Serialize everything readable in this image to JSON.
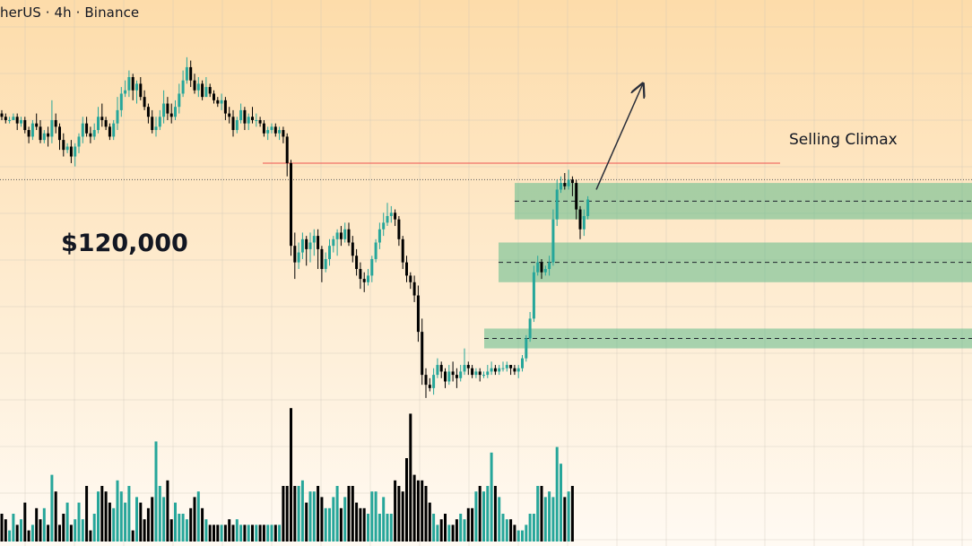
{
  "header": {
    "symbol_text": "herUS",
    "interval": "4h",
    "exchange": "Binance",
    "separator": "·"
  },
  "overlay_price": "$120,000",
  "annotations": {
    "selling_climax": "Selling Climax"
  },
  "colors": {
    "bg_top": "#fddcaa",
    "bg_bottom": "#fffaf3",
    "up": "#26a69a",
    "down": "#000000",
    "zone_fill": "#5fb98a",
    "resistance_line": "#ef5350",
    "text": "#131722"
  },
  "chart_data": {
    "type": "candlestick",
    "symbol": "herUS",
    "interval": "4h",
    "exchange": "Binance",
    "price_scale": {
      "top_value": 100,
      "bottom_value": 0,
      "note": "unlabeled price scale; values in arbitrary chart units"
    },
    "candles": [
      [
        89,
        88,
        90,
        87
      ],
      [
        88,
        87,
        89,
        86
      ],
      [
        87,
        87,
        88,
        86
      ],
      [
        87,
        88,
        89,
        87
      ],
      [
        88,
        86,
        89,
        84
      ],
      [
        86,
        87,
        88,
        85
      ],
      [
        87,
        84,
        88,
        83
      ],
      [
        84,
        82,
        85,
        80
      ],
      [
        82,
        86,
        87,
        81
      ],
      [
        86,
        85,
        89,
        84
      ],
      [
        85,
        81,
        87,
        80
      ],
      [
        81,
        83,
        84,
        80
      ],
      [
        83,
        82,
        85,
        79
      ],
      [
        82,
        87,
        93,
        80
      ],
      [
        87,
        85,
        89,
        83
      ],
      [
        85,
        81,
        86,
        78
      ],
      [
        81,
        78,
        83,
        76
      ],
      [
        78,
        79,
        80,
        77
      ],
      [
        79,
        76,
        81,
        74
      ],
      [
        76,
        79,
        80,
        73
      ],
      [
        79,
        82,
        83,
        77
      ],
      [
        82,
        86,
        88,
        80
      ],
      [
        86,
        83,
        88,
        82
      ],
      [
        83,
        82,
        85,
        80
      ],
      [
        82,
        84,
        86,
        81
      ],
      [
        84,
        88,
        91,
        83
      ],
      [
        88,
        87,
        92,
        85
      ],
      [
        87,
        85,
        88,
        84
      ],
      [
        85,
        82,
        86,
        81
      ],
      [
        82,
        86,
        87,
        81
      ],
      [
        86,
        90,
        94,
        84
      ],
      [
        90,
        95,
        97,
        88
      ],
      [
        95,
        96,
        99,
        94
      ],
      [
        96,
        100,
        102,
        94
      ],
      [
        100,
        96,
        101,
        93
      ],
      [
        96,
        98,
        99,
        92
      ],
      [
        98,
        94,
        100,
        93
      ],
      [
        94,
        91,
        96,
        90
      ],
      [
        91,
        88,
        92,
        86
      ],
      [
        88,
        84,
        90,
        83
      ],
      [
        84,
        85,
        88,
        82
      ],
      [
        85,
        88,
        90,
        84
      ],
      [
        88,
        92,
        96,
        86
      ],
      [
        92,
        89,
        94,
        87
      ],
      [
        89,
        88,
        92,
        86
      ],
      [
        88,
        91,
        93,
        87
      ],
      [
        91,
        95,
        98,
        89
      ],
      [
        95,
        99,
        102,
        94
      ],
      [
        99,
        103,
        106,
        98
      ],
      [
        103,
        99,
        105,
        97
      ],
      [
        99,
        96,
        101,
        95
      ],
      [
        96,
        98,
        100,
        94
      ],
      [
        98,
        94,
        99,
        93
      ],
      [
        94,
        97,
        100,
        95
      ],
      [
        97,
        95,
        98,
        94
      ],
      [
        95,
        93,
        96,
        92
      ],
      [
        93,
        92,
        94,
        91
      ],
      [
        92,
        93,
        95,
        90
      ],
      [
        93,
        89,
        94,
        87
      ],
      [
        89,
        88,
        91,
        86
      ],
      [
        88,
        84,
        90,
        82
      ],
      [
        84,
        87,
        88,
        83
      ],
      [
        87,
        90,
        92,
        86
      ],
      [
        90,
        86,
        91,
        84
      ],
      [
        86,
        88,
        89,
        84
      ],
      [
        88,
        87,
        91,
        86
      ],
      [
        87,
        87,
        89,
        85
      ],
      [
        87,
        86,
        88,
        85
      ],
      [
        86,
        83,
        87,
        82
      ],
      [
        83,
        84,
        85,
        81
      ],
      [
        84,
        85,
        86,
        83
      ],
      [
        85,
        83,
        86,
        82
      ],
      [
        83,
        84,
        85,
        81
      ],
      [
        84,
        82,
        85,
        80
      ],
      [
        82,
        74,
        83,
        70
      ],
      [
        74,
        49,
        75,
        46
      ],
      [
        49,
        44,
        53,
        39
      ],
      [
        44,
        47,
        50,
        42
      ],
      [
        47,
        51,
        53,
        45
      ],
      [
        51,
        48,
        52,
        43
      ],
      [
        48,
        50,
        53,
        44
      ],
      [
        50,
        52,
        54,
        46
      ],
      [
        52,
        48,
        54,
        42
      ],
      [
        48,
        42,
        49,
        38
      ],
      [
        42,
        45,
        47,
        41
      ],
      [
        45,
        49,
        51,
        43
      ],
      [
        49,
        51,
        52,
        47
      ],
      [
        51,
        53,
        54,
        46
      ],
      [
        53,
        51,
        55,
        49
      ],
      [
        51,
        54,
        56,
        50
      ],
      [
        54,
        50,
        56,
        49
      ],
      [
        50,
        46,
        52,
        44
      ],
      [
        46,
        42,
        48,
        40
      ],
      [
        42,
        39,
        44,
        36
      ],
      [
        39,
        38,
        41,
        35
      ],
      [
        38,
        40,
        42,
        37
      ],
      [
        40,
        45,
        46,
        38
      ],
      [
        45,
        50,
        51,
        44
      ],
      [
        50,
        54,
        56,
        48
      ],
      [
        54,
        56,
        59,
        52
      ],
      [
        56,
        58,
        62,
        55
      ],
      [
        58,
        59,
        61,
        56
      ],
      [
        59,
        57,
        60,
        55
      ],
      [
        57,
        51,
        58,
        49
      ],
      [
        51,
        44,
        52,
        42
      ],
      [
        44,
        40,
        46,
        38
      ],
      [
        40,
        38,
        41,
        36
      ],
      [
        38,
        34,
        40,
        32
      ],
      [
        34,
        23,
        37,
        20
      ],
      [
        23,
        10,
        27,
        7
      ],
      [
        10,
        7,
        12,
        3
      ],
      [
        7,
        6,
        9,
        5
      ],
      [
        6,
        10,
        12,
        4
      ],
      [
        10,
        13,
        15,
        9
      ],
      [
        13,
        11,
        14,
        9
      ],
      [
        11,
        8,
        12,
        6
      ],
      [
        8,
        11,
        13,
        7
      ],
      [
        11,
        10,
        14,
        8
      ],
      [
        10,
        9,
        12,
        6
      ],
      [
        9,
        11,
        13,
        8
      ],
      [
        11,
        13,
        18,
        10
      ],
      [
        13,
        12,
        14,
        10
      ],
      [
        12,
        10,
        13,
        9
      ],
      [
        10,
        11,
        12,
        9
      ],
      [
        11,
        10,
        12,
        8
      ],
      [
        10,
        10,
        11,
        9
      ],
      [
        10,
        11,
        13,
        9
      ],
      [
        11,
        12,
        14,
        10
      ],
      [
        12,
        11,
        13,
        10
      ],
      [
        11,
        12,
        13,
        10
      ],
      [
        12,
        12,
        14,
        11
      ],
      [
        12,
        13,
        14,
        11
      ],
      [
        13,
        12,
        13,
        10
      ],
      [
        12,
        11,
        13,
        10
      ],
      [
        11,
        12,
        13,
        9
      ],
      [
        12,
        15,
        16,
        11
      ],
      [
        15,
        21,
        22,
        14
      ],
      [
        21,
        27,
        29,
        20
      ],
      [
        27,
        41,
        43,
        26
      ],
      [
        41,
        44,
        46,
        40
      ],
      [
        44,
        41,
        45,
        39
      ],
      [
        41,
        42,
        43,
        40
      ],
      [
        42,
        44,
        46,
        40
      ],
      [
        44,
        57,
        60,
        43
      ],
      [
        57,
        66,
        69,
        55
      ],
      [
        66,
        68,
        70,
        65
      ],
      [
        68,
        67,
        71,
        66
      ],
      [
        67,
        69,
        72,
        66
      ],
      [
        69,
        68,
        70,
        64
      ],
      [
        68,
        60,
        69,
        57
      ],
      [
        60,
        54,
        61,
        51
      ],
      [
        54,
        58,
        60,
        52
      ],
      [
        58,
        63,
        64,
        57
      ]
    ],
    "volume": [
      5,
      4,
      2,
      5,
      3,
      4,
      7,
      2,
      3,
      6,
      4,
      6,
      3,
      12,
      9,
      3,
      5,
      7,
      3,
      4,
      7,
      4,
      10,
      2,
      5,
      9,
      10,
      9,
      7,
      6,
      11,
      9,
      7,
      10,
      2,
      8,
      7,
      4,
      6,
      8,
      18,
      10,
      8,
      11,
      4,
      7,
      5,
      5,
      4,
      6,
      8,
      9,
      6,
      4,
      3,
      3,
      3,
      3,
      3,
      4,
      3,
      4,
      3,
      3,
      3,
      3,
      3,
      3,
      3,
      3,
      3,
      3,
      3,
      10,
      10,
      24,
      10,
      10,
      11,
      7,
      9,
      9,
      10,
      8,
      6,
      6,
      8,
      10,
      6,
      8,
      10,
      10,
      7,
      6,
      6,
      5,
      9,
      9,
      5,
      8,
      5,
      5,
      11,
      10,
      9,
      15,
      23,
      12,
      11,
      11,
      10,
      7,
      5,
      3,
      4,
      5,
      3,
      3,
      4,
      5,
      4,
      6,
      6,
      9,
      10,
      9,
      10,
      16,
      10,
      8,
      5,
      4,
      4,
      3,
      2,
      2,
      3,
      5,
      5,
      10,
      10,
      8,
      9,
      8,
      17,
      14,
      8,
      9,
      10
    ],
    "zones": [
      {
        "top": 68,
        "bottom": 57
      },
      {
        "top": 50,
        "bottom": 38
      },
      {
        "top": 24,
        "bottom": 18
      }
    ],
    "resistance_level": 74,
    "current_price_level": 69,
    "annotation": {
      "text": "Selling Climax",
      "level": 74
    },
    "projection": {
      "from_price": 66,
      "to_price": 98
    }
  }
}
